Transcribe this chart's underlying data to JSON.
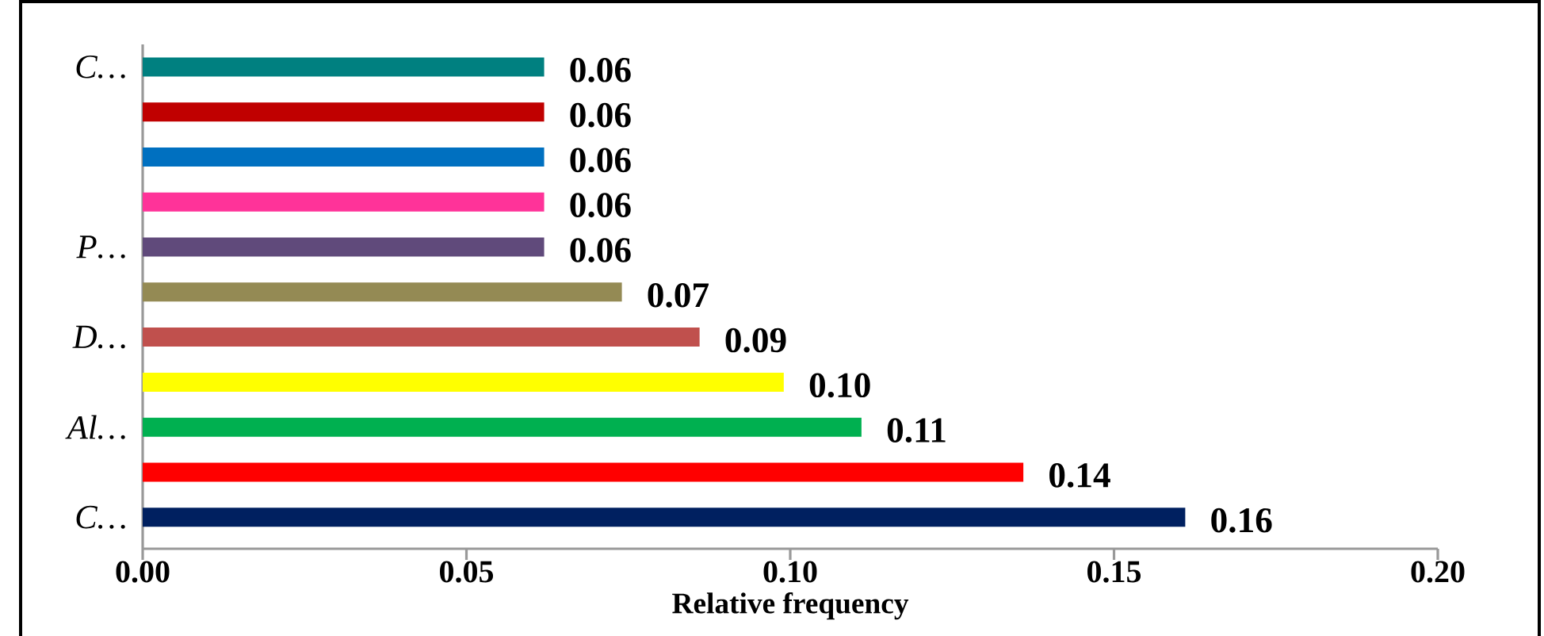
{
  "chart_data": {
    "type": "bar",
    "orientation": "horizontal",
    "xlabel": "Relative frequency",
    "categories": [
      "C…",
      null,
      null,
      null,
      "P…",
      null,
      "D…",
      null,
      "Al…",
      null,
      "C…"
    ],
    "values": [
      0.062,
      0.062,
      0.062,
      0.062,
      0.062,
      0.074,
      0.086,
      0.099,
      0.111,
      0.136,
      0.161
    ],
    "value_labels": [
      "0.06",
      "0.06",
      "0.06",
      "0.06",
      "0.06",
      "0.07",
      "0.09",
      "0.10",
      "0.11",
      "0.14",
      "0.16"
    ],
    "colors": [
      "#008080",
      "#c00000",
      "#0070c0",
      "#ff3399",
      "#604a7b",
      "#948a54",
      "#c0504d",
      "#ffff00",
      "#00b050",
      "#ff0000",
      "#002060"
    ],
    "xlim": [
      0,
      0.2
    ],
    "xticks": [
      {
        "value": 0,
        "label": "0.00"
      },
      0.05,
      {
        "value": 0.1,
        "label": "0.10"
      },
      0.15,
      {
        "value": 0.2,
        "label": "0.20"
      }
    ],
    "data_labels": false
  }
}
